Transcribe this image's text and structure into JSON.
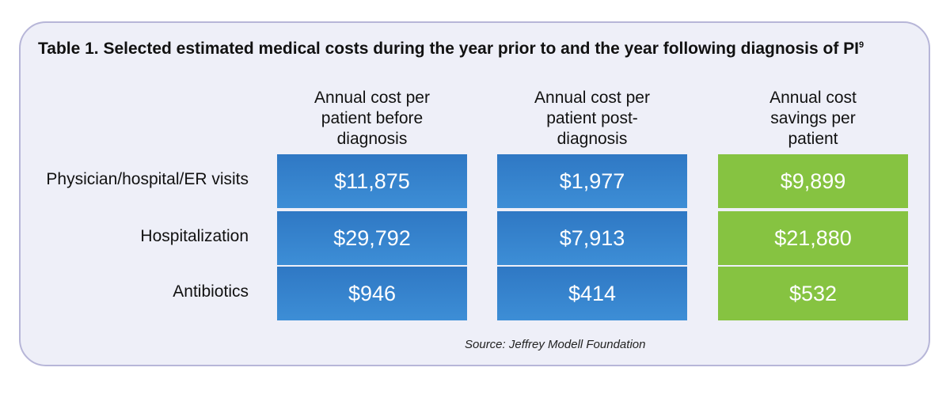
{
  "chart_data": {
    "type": "table",
    "title": "Table 1.  Selected estimated medical costs during the year prior to and the year following diagnosis of PI",
    "title_superscript": "9",
    "columns": [
      "Annual cost per patient before diagnosis",
      "Annual cost per patient post-diagnosis",
      "Annual cost savings per patient"
    ],
    "header_lines": [
      [
        "Annual cost per",
        "patient before",
        "diagnosis"
      ],
      [
        "Annual cost per",
        "patient post-",
        "diagnosis"
      ],
      [
        "Annual cost",
        "savings per",
        "patient"
      ]
    ],
    "rows": [
      {
        "label": "Physician/hospital/ER visits",
        "values": [
          "$11,875",
          "$1,977",
          "$9,899"
        ]
      },
      {
        "label": "Hospitalization",
        "values": [
          "$29,792",
          "$7,913",
          "$21,880"
        ]
      },
      {
        "label": "Antibiotics",
        "values": [
          "$946",
          "$414",
          "$532"
        ]
      }
    ],
    "source": "Source:  Jeffrey Modell Foundation",
    "colors": {
      "before": "#3584cd",
      "post": "#3584cd",
      "savings": "#86c341",
      "panel_background": "#eeeff8",
      "panel_border": "#b7b6d8"
    }
  }
}
